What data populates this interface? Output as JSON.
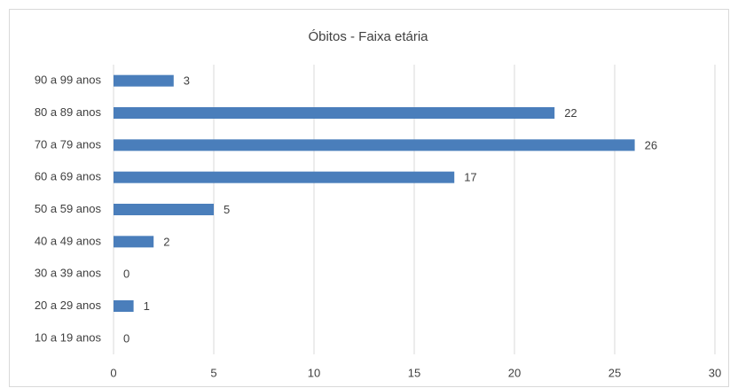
{
  "chart_data": {
    "type": "bar",
    "orientation": "horizontal",
    "title": "Óbitos - Faixa etária",
    "categories": [
      "90 a 99 anos",
      "80 a 89 anos",
      "70 a 79 anos",
      "60 a 69 anos",
      "50 a 59 anos",
      "40 a 49 anos",
      "30 a 39 anos",
      "20 a 29 anos",
      "10 a 19 anos"
    ],
    "values": [
      3,
      22,
      26,
      17,
      5,
      2,
      0,
      1,
      0
    ],
    "color": "#4a7ebb",
    "xlim": [
      0,
      30
    ],
    "xticks": [
      0,
      5,
      10,
      15,
      20,
      25,
      30
    ],
    "grid": true
  }
}
